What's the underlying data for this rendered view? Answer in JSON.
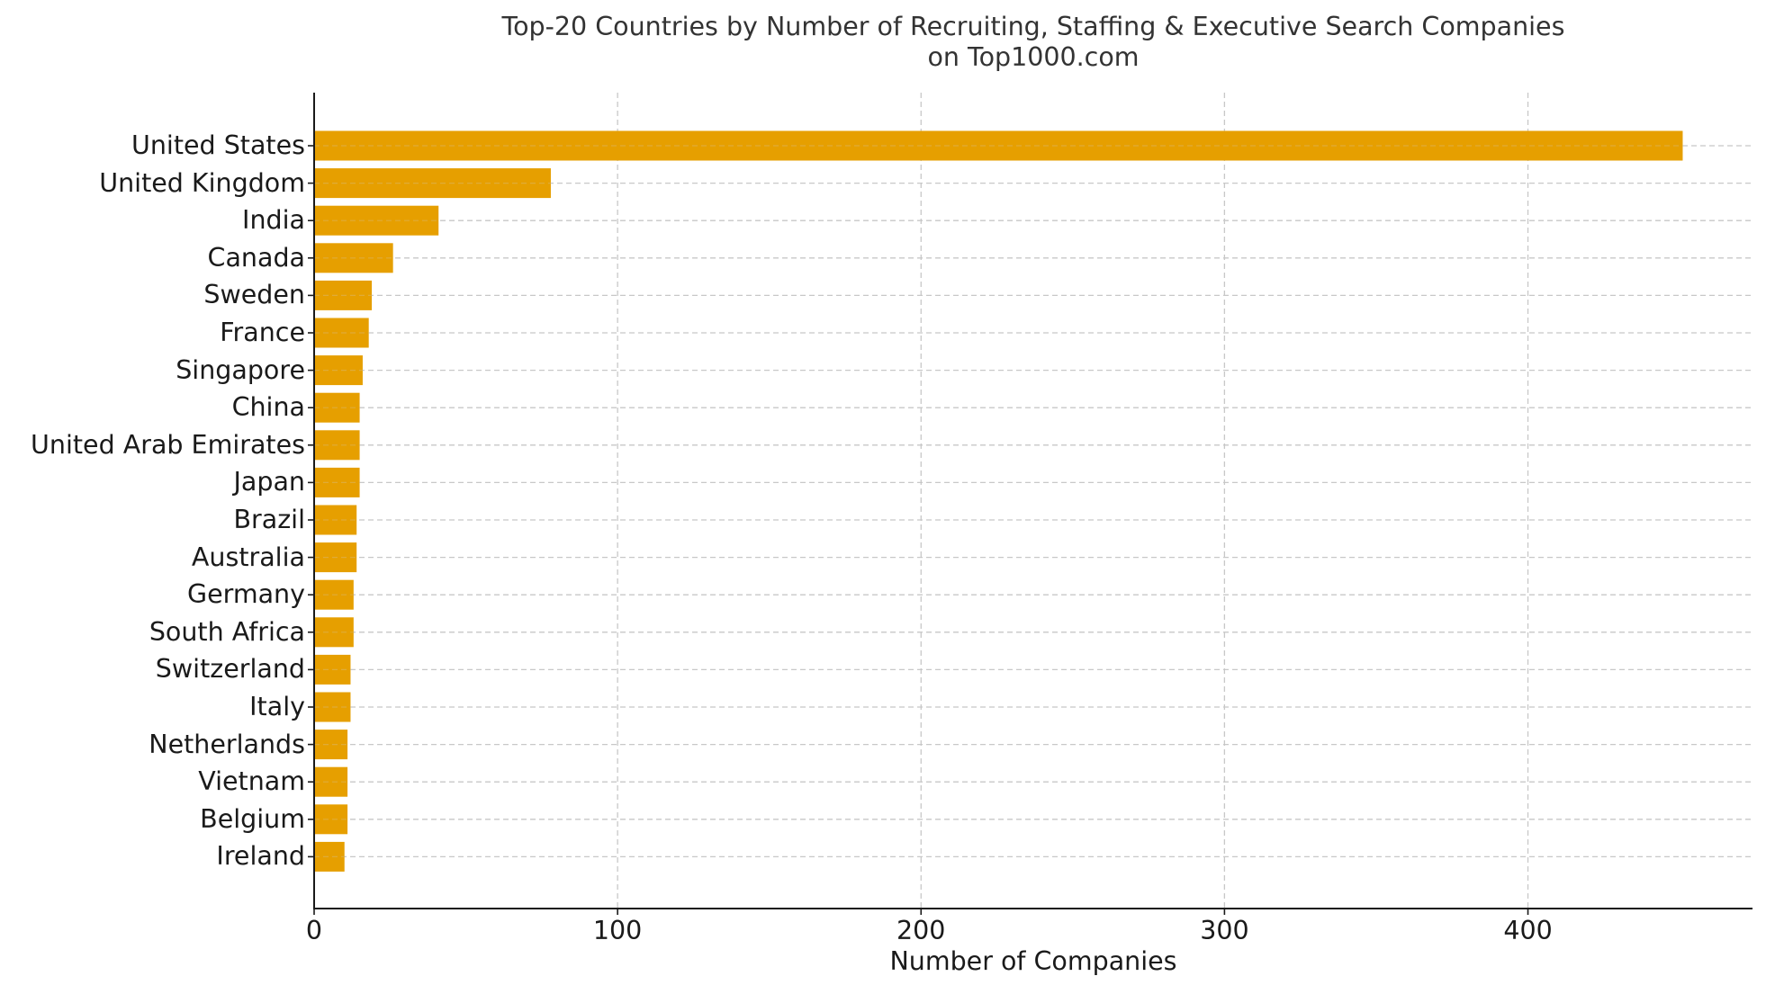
{
  "title": {
    "line1": "Top-20 Countries by Number of Recruiting, Staffing & Executive Search Companies",
    "line2": "on Top1000.com"
  },
  "colors": {
    "bar": "#E69F00",
    "axis": "#1a1a1a",
    "grid": "#c8c8c8",
    "title": "#333333"
  },
  "chart_data": {
    "type": "bar",
    "orientation": "horizontal",
    "title": "Top-20 Countries by Number of Recruiting, Staffing & Executive Search Companies on Top1000.com",
    "xlabel": "Number of Companies",
    "ylabel": "",
    "categories": [
      "United States",
      "United Kingdom",
      "India",
      "Canada",
      "Sweden",
      "France",
      "Singapore",
      "China",
      "United Arab Emirates",
      "Japan",
      "Brazil",
      "Australia",
      "Germany",
      "South Africa",
      "Switzerland",
      "Italy",
      "Netherlands",
      "Vietnam",
      "Belgium",
      "Ireland"
    ],
    "values": [
      451,
      78,
      41,
      26,
      19,
      18,
      16,
      15,
      15,
      15,
      14,
      14,
      13,
      13,
      12,
      12,
      11,
      11,
      11,
      10
    ],
    "xlim": [
      0,
      474
    ],
    "xticks": [
      0,
      100,
      200,
      300,
      400
    ],
    "grid": {
      "on": true,
      "style": "dashed",
      "axes": "both"
    },
    "legend": null
  }
}
